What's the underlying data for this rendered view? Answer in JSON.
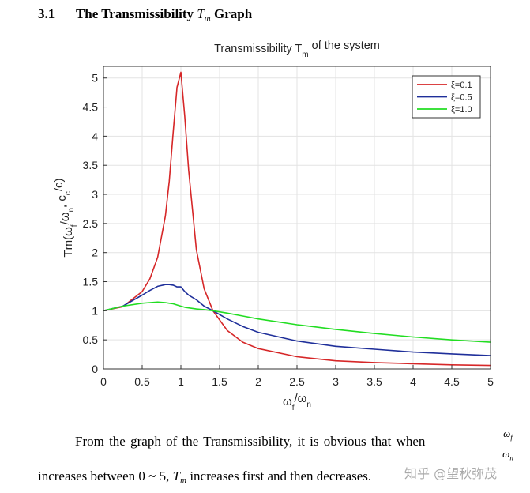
{
  "heading": {
    "number": "3.1",
    "text": "The Transmissibility",
    "tm": "T",
    "tm_sub": "m",
    "text_after": "Graph"
  },
  "chart_data": {
    "type": "line",
    "title": "Transmissibility T",
    "title_sub": "m",
    "title_after": " of the system",
    "xlabel": "ω",
    "xlabel_sub1": "f",
    "xlabel_mid": "/ω",
    "xlabel_sub2": "n",
    "ylabel": "Tm(ω",
    "ylabel_sub1": "f",
    "ylabel_mid": "/ω",
    "ylabel_sub2": "n",
    "ylabel_mid2": ", c",
    "ylabel_sub3": "c",
    "ylabel_end": "/c)",
    "xlim": [
      0,
      5
    ],
    "ylim": [
      0,
      5.2
    ],
    "xticks": [
      0,
      0.5,
      1,
      1.5,
      2,
      2.5,
      3,
      3.5,
      4,
      4.5,
      5
    ],
    "yticks": [
      0,
      0.5,
      1,
      1.5,
      2,
      2.5,
      3,
      3.5,
      4,
      4.5,
      5
    ],
    "grid": true,
    "legend_position": "top-right",
    "x": [
      0,
      0.25,
      0.5,
      0.6,
      0.7,
      0.8,
      0.85,
      0.9,
      0.95,
      1.0,
      1.05,
      1.1,
      1.2,
      1.3,
      1.414,
      1.6,
      1.8,
      2.0,
      2.5,
      3.0,
      3.5,
      4.0,
      4.5,
      5.0
    ],
    "series": [
      {
        "name": "ξ=0.1",
        "color": "#d62728",
        "values": [
          1.0,
          1.07,
          1.33,
          1.55,
          1.92,
          2.63,
          3.23,
          4.06,
          4.84,
          5.1,
          4.34,
          3.42,
          2.05,
          1.38,
          1.0,
          0.66,
          0.46,
          0.35,
          0.21,
          0.14,
          0.11,
          0.09,
          0.07,
          0.06
        ]
      },
      {
        "name": "ξ=0.5",
        "color": "#1f2f9a",
        "values": [
          1.0,
          1.08,
          1.27,
          1.35,
          1.42,
          1.45,
          1.45,
          1.44,
          1.41,
          1.41,
          1.33,
          1.27,
          1.19,
          1.08,
          1.0,
          0.86,
          0.73,
          0.63,
          0.48,
          0.39,
          0.34,
          0.29,
          0.26,
          0.23
        ]
      },
      {
        "name": "ξ=1.0",
        "color": "#22dd22",
        "values": [
          1.0,
          1.08,
          1.13,
          1.14,
          1.15,
          1.14,
          1.13,
          1.12,
          1.1,
          1.08,
          1.06,
          1.05,
          1.03,
          1.02,
          1.0,
          0.96,
          0.91,
          0.86,
          0.76,
          0.68,
          0.61,
          0.55,
          0.5,
          0.46
        ]
      }
    ]
  },
  "paragraph": {
    "line1": "From the graph of the Transmissibility, it is obvious that when",
    "frac_num": "ω",
    "frac_num_sub": "f",
    "frac_den": "ω",
    "frac_den_sub": "n",
    "line2_a": "increases between 0 ~ 5,",
    "line2_tm": "T",
    "line2_tm_sub": "m",
    "line2_b": "increases first and then decreases."
  },
  "watermark": "知乎 @望秋弥茂"
}
